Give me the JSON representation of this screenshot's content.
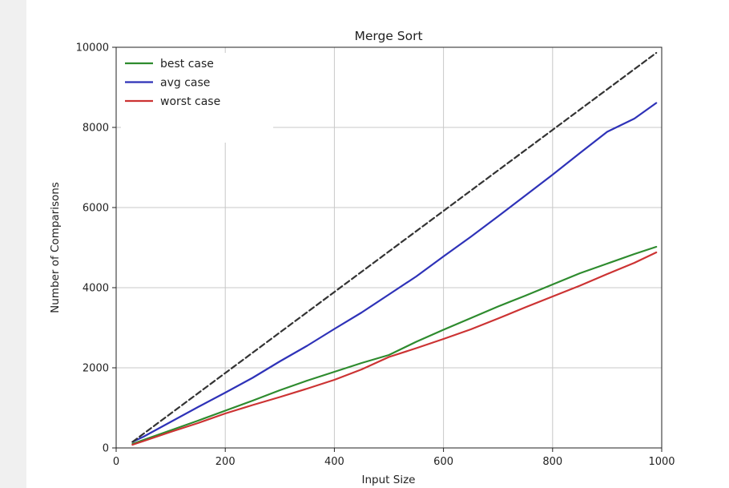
{
  "chart_data": {
    "type": "line",
    "title": "Merge Sort",
    "xlabel": "Input Size",
    "ylabel": "Number of Comparisons",
    "xlim": [
      0,
      1000
    ],
    "ylim": [
      0,
      10000
    ],
    "xticks": [
      0,
      200,
      400,
      600,
      800,
      1000
    ],
    "yticks": [
      0,
      2000,
      4000,
      6000,
      8000,
      10000
    ],
    "grid": true,
    "legend_position": "top-left",
    "series": [
      {
        "name": "best case",
        "color": "#2e8b2e",
        "style": "solid",
        "x": [
          30,
          50,
          100,
          150,
          200,
          250,
          300,
          350,
          400,
          450,
          500,
          550,
          600,
          650,
          700,
          750,
          800,
          850,
          900,
          950,
          990
        ],
        "y": [
          100,
          200,
          440,
          680,
          930,
          1180,
          1440,
          1680,
          1900,
          2120,
          2320,
          2650,
          2950,
          3240,
          3530,
          3800,
          4080,
          4360,
          4600,
          4840,
          5020
        ]
      },
      {
        "name": "avg case",
        "color": "#2e32b8",
        "style": "solid",
        "x": [
          30,
          50,
          100,
          150,
          200,
          250,
          300,
          350,
          400,
          450,
          500,
          550,
          600,
          650,
          700,
          750,
          800,
          850,
          900,
          950,
          990
        ],
        "y": [
          150,
          280,
          650,
          1020,
          1380,
          1750,
          2160,
          2550,
          2970,
          3380,
          3830,
          4280,
          4780,
          5270,
          5780,
          6300,
          6820,
          7360,
          7890,
          8220,
          8610
        ]
      },
      {
        "name": "worst case",
        "color": "#cc3333",
        "style": "solid",
        "x": [
          30,
          50,
          100,
          150,
          200,
          250,
          300,
          350,
          400,
          450,
          500,
          550,
          600,
          650,
          700,
          750,
          800,
          850,
          900,
          950,
          990
        ],
        "y": [
          80,
          170,
          400,
          620,
          860,
          1070,
          1270,
          1480,
          1700,
          1960,
          2270,
          2490,
          2720,
          2960,
          3230,
          3510,
          3780,
          4050,
          4340,
          4620,
          4880
        ]
      },
      {
        "name": "",
        "color": "#333333",
        "style": "dashed",
        "x": [
          30,
          990
        ],
        "y": [
          150,
          9860
        ]
      }
    ]
  }
}
